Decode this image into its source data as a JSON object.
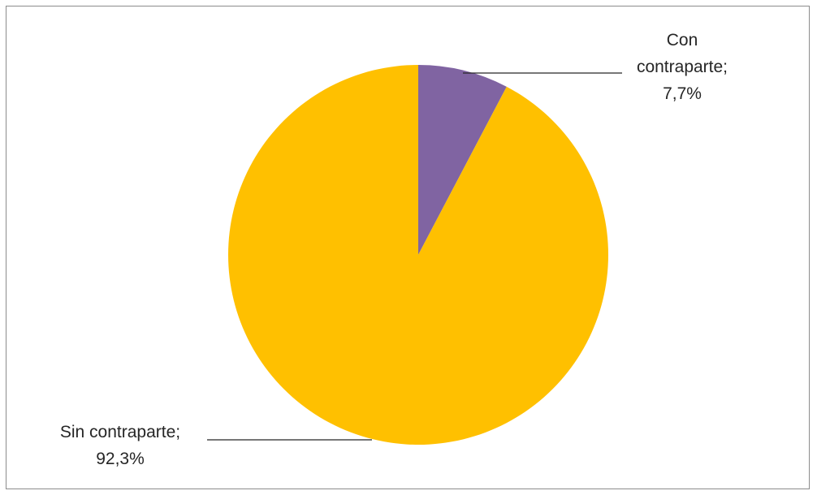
{
  "chart_data": {
    "type": "pie",
    "title": "",
    "start_angle_deg": 0,
    "direction": "clockwise",
    "slices": [
      {
        "label_lines": [
          "Con",
          "contraparte;",
          "7,7%"
        ],
        "category": "Con contraparte",
        "value": 7.7,
        "value_label": "7,7%",
        "color": "#8064A2"
      },
      {
        "label_lines": [
          "Sin contraparte;",
          "92,3%"
        ],
        "category": "Sin contraparte",
        "value": 92.3,
        "value_label": "92,3%",
        "color": "#FFC000"
      }
    ],
    "legend": "none",
    "data_label_placement": "outside with leader lines"
  }
}
